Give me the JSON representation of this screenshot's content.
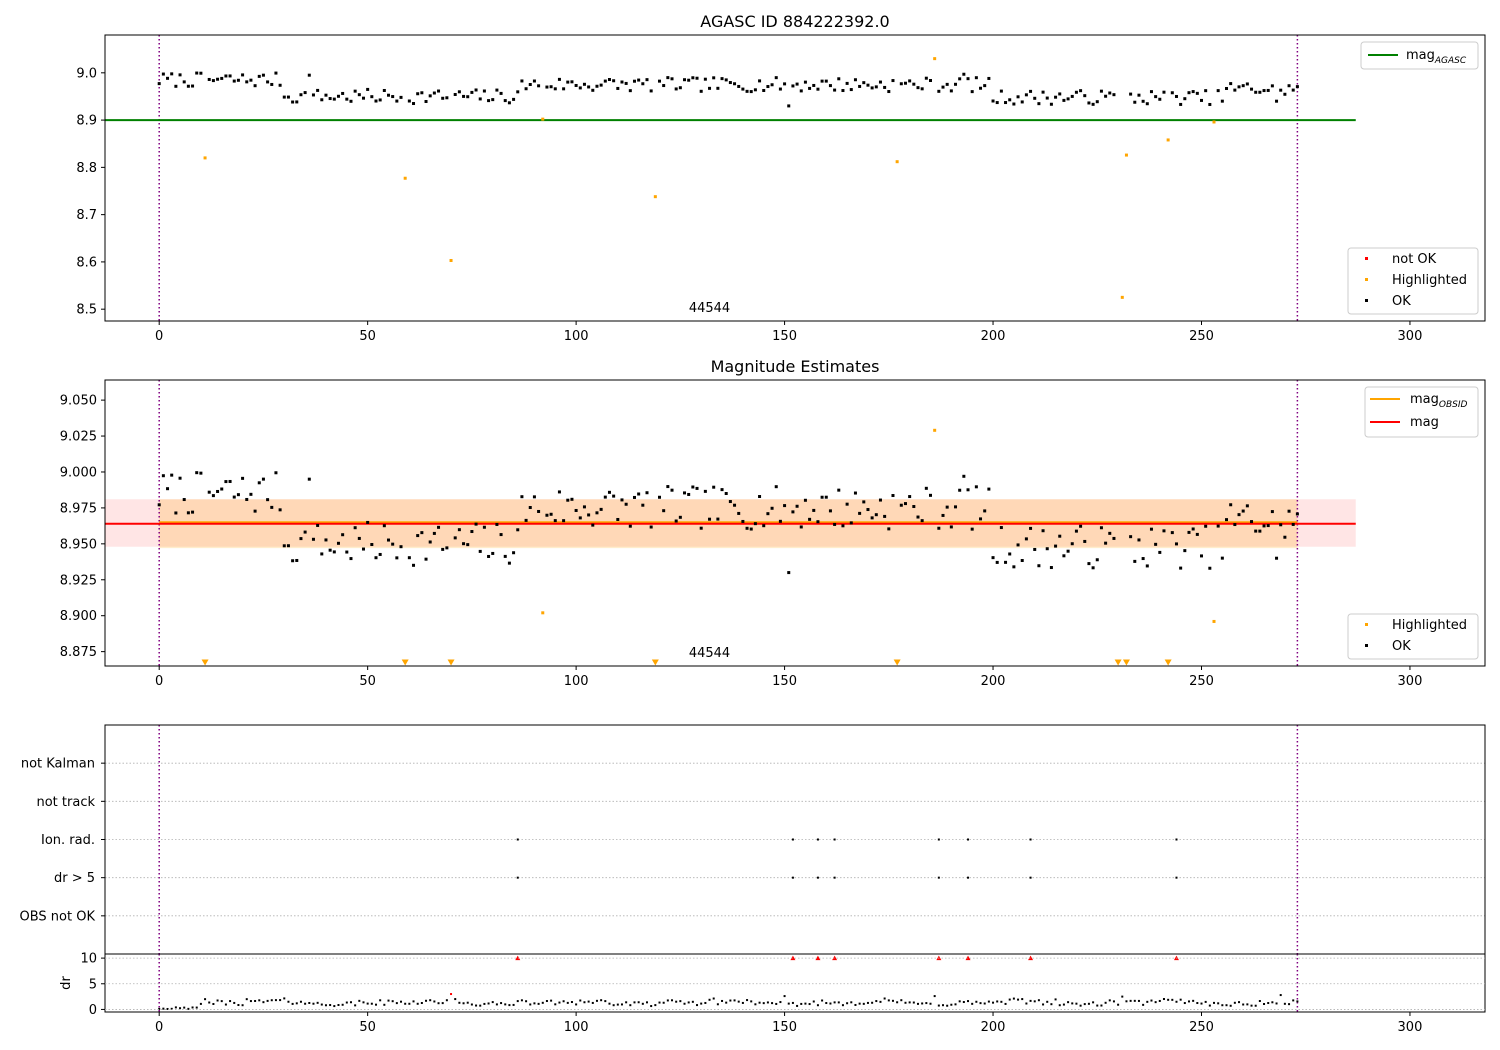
{
  "chart_data": [
    {
      "type": "scatter",
      "title": "AGASC ID 884222392.0",
      "xlim": [
        -13,
        318
      ],
      "ylim": [
        8.475,
        9.08
      ],
      "xticks": [
        0,
        50,
        100,
        150,
        200,
        250,
        300
      ],
      "yticks": [
        8.5,
        8.6,
        8.7,
        8.8,
        8.9,
        9.0
      ],
      "ytick_labels": [
        "8.5",
        "8.6",
        "8.7",
        "8.8",
        "8.9",
        "9.0"
      ],
      "obsid_label": "44544",
      "obsid_x": 132,
      "vlines": [
        0,
        273
      ],
      "mag_agasc": 8.9,
      "mag_agasc_x": [
        -13,
        287
      ],
      "line_legend": {
        "position": "top-right",
        "entries": [
          {
            "base": "mag",
            "sub": "AGASC",
            "color": "#008000"
          }
        ]
      },
      "point_legend": {
        "position": "bottom-right",
        "entries": [
          {
            "label": "not OK",
            "color": "#ff0000"
          },
          {
            "label": "Highlighted",
            "color": "#ffa500"
          },
          {
            "label": "OK",
            "color": "#000000"
          }
        ]
      },
      "series": [
        {
          "name": "Highlighted",
          "color": "#ffa500",
          "x": [
            11,
            59,
            70,
            92,
            119,
            177,
            186,
            231,
            232,
            242,
            253
          ],
          "y": [
            8.82,
            8.777,
            8.603,
            8.902,
            8.738,
            8.812,
            9.03,
            8.525,
            8.826,
            8.858,
            8.896
          ]
        }
      ]
    },
    {
      "type": "scatter",
      "title": "Magnitude Estimates",
      "xlim": [
        -13,
        318
      ],
      "ylim": [
        8.865,
        9.064
      ],
      "xticks": [
        0,
        50,
        100,
        150,
        200,
        250,
        300
      ],
      "yticks": [
        8.875,
        8.9,
        8.925,
        8.95,
        8.975,
        9.0,
        9.025,
        9.05
      ],
      "ytick_labels": [
        "8.875",
        "8.900",
        "8.925",
        "8.950",
        "8.975",
        "9.000",
        "9.025",
        "9.050"
      ],
      "obsid_label": "44544",
      "obsid_x": 132,
      "vlines": [
        0,
        273
      ],
      "mag": 8.964,
      "mag_band": [
        8.948,
        8.981
      ],
      "mag_x": [
        -13,
        287
      ],
      "mag_obsid": 8.965,
      "mag_obsid_band": [
        8.947,
        8.981
      ],
      "mag_obsid_x": [
        0,
        273
      ],
      "line_legend": {
        "position": "top-right",
        "entries": [
          {
            "base": "mag",
            "sub": "OBSID",
            "color": "#ffa500"
          },
          {
            "base": "mag",
            "sub": "",
            "color": "#ff0000"
          }
        ]
      },
      "point_legend": {
        "position": "bottom-right",
        "entries": [
          {
            "label": "Highlighted",
            "color": "#ffa500"
          },
          {
            "label": "OK",
            "color": "#000000"
          }
        ]
      },
      "out_of_range_markers": {
        "color": "#ffa500",
        "x": [
          11,
          59,
          70,
          119,
          177,
          230,
          232,
          242
        ]
      },
      "series": [
        {
          "name": "Highlighted",
          "color": "#ffa500",
          "x": [
            92,
            186,
            253
          ],
          "y": [
            8.902,
            9.029,
            8.896
          ]
        }
      ]
    },
    {
      "type": "scatter",
      "xlim": [
        -13,
        318
      ],
      "categories": [
        "not Kalman",
        "not track",
        "Ion. rad.",
        "dr > 5",
        "OBS not OK"
      ],
      "vlines": [
        0,
        273
      ],
      "flags": [
        {
          "category": "Ion. rad.",
          "x": [
            86,
            152,
            158,
            162,
            187,
            194,
            209,
            244
          ]
        },
        {
          "category": "dr > 5",
          "x": [
            86,
            152,
            158,
            162,
            187,
            194,
            209,
            244
          ]
        }
      ]
    },
    {
      "type": "scatter",
      "xlim": [
        -13,
        318
      ],
      "ylim": [
        -0.5,
        10.8
      ],
      "ylabel": "dr",
      "xticks": [
        0,
        50,
        100,
        150,
        200,
        250,
        300
      ],
      "yticks": [
        0,
        5,
        10
      ],
      "ytick_labels": [
        "0",
        "5",
        "10"
      ],
      "vlines": [
        0,
        273
      ],
      "clipped_points": {
        "color": "#ff0000",
        "x": [
          86,
          152,
          158,
          162,
          187,
          194,
          209,
          244
        ],
        "y": 10
      },
      "series": [
        {
          "name": "not OK",
          "color": "#ff0000",
          "x": [
            70
          ],
          "y": [
            3.0
          ]
        }
      ]
    }
  ]
}
